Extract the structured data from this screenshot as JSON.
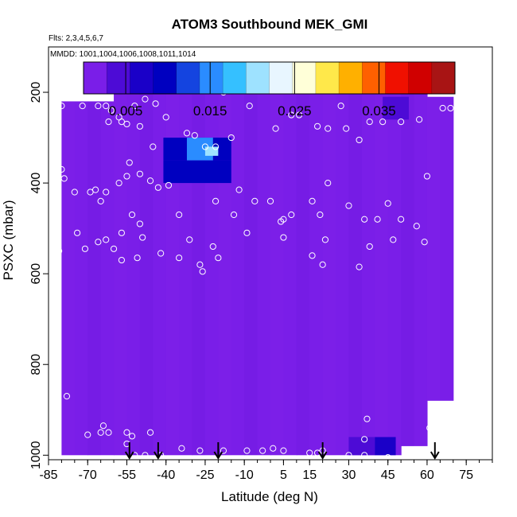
{
  "chart_data": {
    "type": "heatmap",
    "title": "ATOM3 Southbound MEK_GMI",
    "flights_label": "Flts: 2,3,4,5,6,7",
    "dates_label": "MMDD: 1001,1004,1006,1008,1011,1014",
    "xlabel": "Latitude (deg N)",
    "ylabel": "PSXC (mbar)",
    "xlim": [
      -85,
      85
    ],
    "ylim": [
      1010,
      100
    ],
    "x_ticks": [
      -85,
      -70,
      -55,
      -40,
      -25,
      -10,
      5,
      15,
      30,
      45,
      60,
      75
    ],
    "y_ticks": [
      200,
      400,
      600,
      800,
      1000
    ],
    "colorbar": {
      "range": [
        0,
        0.044
      ],
      "tick_values": [
        0.005,
        0.015,
        0.025,
        0.035
      ],
      "tick_labels": [
        "0.005",
        "0.015",
        "0.025",
        "0.035"
      ],
      "colors": [
        "#7a1ee8",
        "#4d0bd6",
        "#1a00c8",
        "#0000c0",
        "#1444e0",
        "#2a8cff",
        "#35c0ff",
        "#9ee2ff",
        "#e8f6ff",
        "#ffffd8",
        "#ffe84a",
        "#ffb000",
        "#ff6000",
        "#f01000",
        "#d00000",
        "#a81414"
      ]
    },
    "background_value": 0.001,
    "profiles": [
      {
        "lat": -75,
        "pmin": 220,
        "pmax": 1000
      },
      {
        "lat": -65,
        "pmin": 220,
        "pmax": 1000
      },
      {
        "lat": -55,
        "pmin": 200,
        "pmax": 1000
      },
      {
        "lat": -45,
        "pmin": 200,
        "pmax": 1000
      },
      {
        "lat": -35,
        "pmin": 200,
        "pmax": 1000
      },
      {
        "lat": -25,
        "pmin": 200,
        "pmax": 1000
      },
      {
        "lat": -15,
        "pmin": 200,
        "pmax": 1000
      },
      {
        "lat": -5,
        "pmin": 200,
        "pmax": 1000
      },
      {
        "lat": 5,
        "pmin": 200,
        "pmax": 1000
      },
      {
        "lat": 15,
        "pmin": 200,
        "pmax": 1000
      },
      {
        "lat": 25,
        "pmin": 200,
        "pmax": 1000
      },
      {
        "lat": 35,
        "pmin": 200,
        "pmax": 1000
      },
      {
        "lat": 45,
        "pmin": 200,
        "pmax": 1000
      },
      {
        "lat": 55,
        "pmin": 200,
        "pmax": 980
      },
      {
        "lat": 65,
        "pmin": 210,
        "pmax": 880
      }
    ],
    "anomalies": [
      {
        "lat_range": [
          -41,
          -15
        ],
        "p_range": [
          350,
          400
        ],
        "value": 0.009
      },
      {
        "lat_range": [
          -41,
          -15
        ],
        "p_range": [
          300,
          350
        ],
        "value": 0.01
      },
      {
        "lat_range": [
          -32,
          -22
        ],
        "p_range": [
          300,
          350
        ],
        "value": 0.016
      },
      {
        "lat_range": [
          -25,
          -20
        ],
        "p_range": [
          320,
          340
        ],
        "value": 0.02
      },
      {
        "lat_range": [
          43,
          53
        ],
        "p_range": [
          210,
          260
        ],
        "value": 0.004
      },
      {
        "lat_range": [
          30,
          40
        ],
        "p_range": [
          960,
          1000
        ],
        "value": 0.004
      },
      {
        "lat_range": [
          40,
          48
        ],
        "p_range": [
          960,
          1000
        ],
        "value": 0.006
      }
    ],
    "sample_points": [
      {
        "lat": -80,
        "p": 230
      },
      {
        "lat": -72,
        "p": 230
      },
      {
        "lat": -66,
        "p": 230
      },
      {
        "lat": -63,
        "p": 230
      },
      {
        "lat": -61,
        "p": 240
      },
      {
        "lat": -58,
        "p": 255
      },
      {
        "lat": -55,
        "p": 270
      },
      {
        "lat": -52,
        "p": 230
      },
      {
        "lat": -48,
        "p": 215
      },
      {
        "lat": -44,
        "p": 225
      },
      {
        "lat": -54,
        "p": 195
      },
      {
        "lat": -47,
        "p": 195
      },
      {
        "lat": -28,
        "p": 195
      },
      {
        "lat": -18,
        "p": 200
      },
      {
        "lat": -8,
        "p": 230
      },
      {
        "lat": -62,
        "p": 265
      },
      {
        "lat": -57,
        "p": 265
      },
      {
        "lat": -50,
        "p": 275
      },
      {
        "lat": -45,
        "p": 320
      },
      {
        "lat": -40,
        "p": 255
      },
      {
        "lat": -32,
        "p": 290
      },
      {
        "lat": -29,
        "p": 295
      },
      {
        "lat": -25,
        "p": 320
      },
      {
        "lat": -21,
        "p": 320
      },
      {
        "lat": -15,
        "p": 300
      },
      {
        "lat": 2,
        "p": 280
      },
      {
        "lat": 8,
        "p": 250
      },
      {
        "lat": 11,
        "p": 250
      },
      {
        "lat": 18,
        "p": 275
      },
      {
        "lat": 22,
        "p": 280
      },
      {
        "lat": 27,
        "p": 230
      },
      {
        "lat": 29,
        "p": 280
      },
      {
        "lat": 34,
        "p": 305
      },
      {
        "lat": 38,
        "p": 265
      },
      {
        "lat": 43,
        "p": 265
      },
      {
        "lat": 50,
        "p": 265
      },
      {
        "lat": 57,
        "p": 260
      },
      {
        "lat": 60,
        "p": 385
      },
      {
        "lat": 66,
        "p": 235
      },
      {
        "lat": 69,
        "p": 235
      },
      {
        "lat": 72,
        "p": 405
      },
      {
        "lat": -80,
        "p": 370
      },
      {
        "lat": -79,
        "p": 390
      },
      {
        "lat": -75,
        "p": 420
      },
      {
        "lat": -69,
        "p": 420
      },
      {
        "lat": -67,
        "p": 415
      },
      {
        "lat": -65,
        "p": 440
      },
      {
        "lat": -63,
        "p": 420
      },
      {
        "lat": -58,
        "p": 400
      },
      {
        "lat": -55,
        "p": 385
      },
      {
        "lat": -54,
        "p": 355
      },
      {
        "lat": -50,
        "p": 380
      },
      {
        "lat": -46,
        "p": 395
      },
      {
        "lat": -43,
        "p": 410
      },
      {
        "lat": -39,
        "p": 405
      },
      {
        "lat": -35,
        "p": 470
      },
      {
        "lat": -21,
        "p": 440
      },
      {
        "lat": -12,
        "p": 415
      },
      {
        "lat": -6,
        "p": 440
      },
      {
        "lat": -14,
        "p": 470
      },
      {
        "lat": 0,
        "p": 440
      },
      {
        "lat": 4,
        "p": 485
      },
      {
        "lat": 5,
        "p": 480
      },
      {
        "lat": 8,
        "p": 470
      },
      {
        "lat": 16,
        "p": 440
      },
      {
        "lat": 19,
        "p": 470
      },
      {
        "lat": 22,
        "p": 400
      },
      {
        "lat": 30,
        "p": 450
      },
      {
        "lat": 36,
        "p": 480
      },
      {
        "lat": 41,
        "p": 480
      },
      {
        "lat": 45,
        "p": 445
      },
      {
        "lat": 50,
        "p": 480
      },
      {
        "lat": 56,
        "p": 495
      },
      {
        "lat": -74,
        "p": 510
      },
      {
        "lat": -71,
        "p": 545
      },
      {
        "lat": -66,
        "p": 530
      },
      {
        "lat": -63,
        "p": 525
      },
      {
        "lat": -60,
        "p": 545
      },
      {
        "lat": -57,
        "p": 510
      },
      {
        "lat": -53,
        "p": 470
      },
      {
        "lat": -50,
        "p": 490
      },
      {
        "lat": -49,
        "p": 520
      },
      {
        "lat": -42,
        "p": 555
      },
      {
        "lat": -35,
        "p": 565
      },
      {
        "lat": -31,
        "p": 525
      },
      {
        "lat": -27,
        "p": 580
      },
      {
        "lat": -22,
        "p": 540
      },
      {
        "lat": -20,
        "p": 565
      },
      {
        "lat": -9,
        "p": 510
      },
      {
        "lat": 5,
        "p": 520
      },
      {
        "lat": 16,
        "p": 560
      },
      {
        "lat": 21,
        "p": 525
      },
      {
        "lat": 38,
        "p": 540
      },
      {
        "lat": 47,
        "p": 525
      },
      {
        "lat": 59,
        "p": 530
      },
      {
        "lat": -81,
        "p": 550
      },
      {
        "lat": -51,
        "p": 565
      },
      {
        "lat": -57,
        "p": 570
      },
      {
        "lat": -26,
        "p": 595
      },
      {
        "lat": 20,
        "p": 580
      },
      {
        "lat": 34,
        "p": 585
      },
      {
        "lat": -78,
        "p": 870
      },
      {
        "lat": 72,
        "p": 855
      },
      {
        "lat": 37,
        "p": 920
      },
      {
        "lat": 61,
        "p": 940
      },
      {
        "lat": -70,
        "p": 955
      },
      {
        "lat": -65,
        "p": 950
      },
      {
        "lat": -62,
        "p": 950
      },
      {
        "lat": -55,
        "p": 950
      },
      {
        "lat": -53,
        "p": 958
      },
      {
        "lat": -46,
        "p": 950
      },
      {
        "lat": -64,
        "p": 935
      },
      {
        "lat": 36,
        "p": 965
      },
      {
        "lat": -55,
        "p": 975
      },
      {
        "lat": -52,
        "p": 1000
      },
      {
        "lat": -48,
        "p": 1000
      },
      {
        "lat": -42,
        "p": 1000
      },
      {
        "lat": -34,
        "p": 985
      },
      {
        "lat": -27,
        "p": 990
      },
      {
        "lat": -18,
        "p": 990
      },
      {
        "lat": -9,
        "p": 990
      },
      {
        "lat": -3,
        "p": 990
      },
      {
        "lat": 1,
        "p": 985
      },
      {
        "lat": 5,
        "p": 990
      },
      {
        "lat": 15,
        "p": 995
      },
      {
        "lat": 18,
        "p": 995
      },
      {
        "lat": 20,
        "p": 990
      },
      {
        "lat": 30,
        "p": 1000
      },
      {
        "lat": 36,
        "p": 1000
      },
      {
        "lat": 45,
        "p": 1005
      }
    ],
    "flight_marker_latitudes": [
      -54,
      -43,
      -20,
      20,
      63
    ]
  }
}
